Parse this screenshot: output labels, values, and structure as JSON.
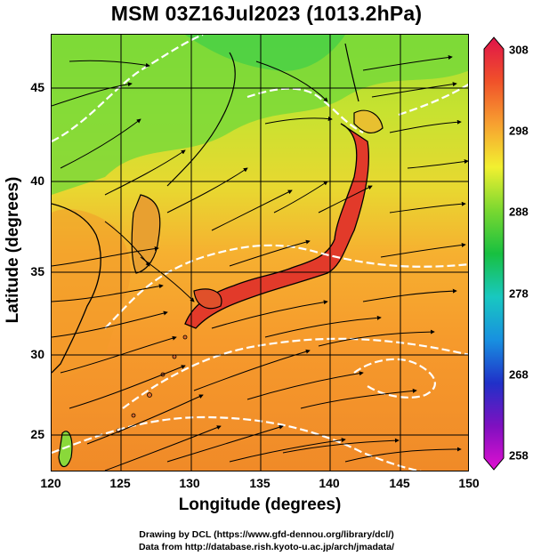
{
  "title": "MSM 03Z16Jul2023 (1013.2hPa)",
  "axes": {
    "xlabel": "Longitude (degrees)",
    "ylabel": "Latitude  (degrees)",
    "xticks": [
      "120",
      "125",
      "130",
      "135",
      "140",
      "145",
      "150"
    ],
    "yticks": [
      "45",
      "40",
      "35",
      "30",
      "25"
    ]
  },
  "colorbar": {
    "ticks": [
      "308",
      "298",
      "288",
      "278",
      "268",
      "258"
    ],
    "colors": [
      "#e0144a",
      "#f0502a",
      "#f7a030",
      "#f2f030",
      "#7ad830",
      "#18c040",
      "#18c8c0",
      "#1890e0",
      "#2030c8",
      "#8010c0",
      "#e010d0"
    ]
  },
  "footer": {
    "line1": "Drawing by DCL (https://www.gfd-dennou.org/library/dcl/)",
    "line2": "Data from http://database.rish.kyoto-u.ac.jp/arch/jmadata/"
  }
}
